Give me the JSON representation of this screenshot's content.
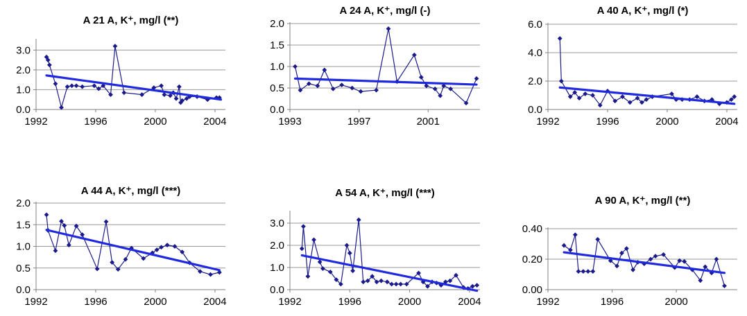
{
  "chart_data": [
    {
      "type": "scatter",
      "title": "A 21 A, K⁺, mg/l  (**)",
      "xlabel": "",
      "ylabel": "",
      "xlim": [
        1992,
        2004.7
      ],
      "ylim": [
        0,
        3.5
      ],
      "xticks": [
        1992,
        1996,
        2000,
        2004
      ],
      "xtick_labels": [
        "1992",
        "1996",
        "2000",
        "2004"
      ],
      "yticks": [
        0,
        1,
        2,
        3
      ],
      "ytick_labels": [
        "0.0",
        "1.0",
        "2.0",
        "3.0"
      ],
      "gridlines": "horizontal",
      "series": [
        {
          "x": [
            1992.7,
            1992.8,
            1992.9,
            1993.3,
            1993.7,
            1994.1,
            1994.4,
            1994.7,
            1995.1,
            1995.9,
            1996.2,
            1996.5,
            1997.0,
            1997.3,
            1997.9,
            1999.1,
            1999.9,
            2000.4,
            2000.6,
            2001.0,
            2001.2,
            2001.4,
            2001.6,
            2001.7,
            2001.8,
            2002.1,
            2002.3,
            2002.8,
            2003.5,
            2004.1,
            2004.3
          ],
          "y": [
            2.65,
            2.5,
            2.25,
            1.3,
            0.1,
            1.15,
            1.2,
            1.2,
            1.15,
            1.2,
            1.05,
            1.2,
            0.75,
            3.2,
            0.85,
            0.75,
            1.1,
            1.2,
            0.75,
            0.7,
            0.85,
            0.55,
            1.15,
            0.35,
            0.45,
            0.55,
            0.65,
            0.65,
            0.5,
            0.6,
            0.6
          ]
        }
      ],
      "trend": {
        "x": [
          1992.7,
          2004.4
        ],
        "y": [
          1.72,
          0.5
        ]
      },
      "colors": {
        "series": "#1a1a8c",
        "trend": "#1f2ae0",
        "grid": "#999999"
      }
    },
    {
      "type": "scatter",
      "title": "A 24 A, K⁺, mg/l  (-)",
      "xlabel": "",
      "ylabel": "",
      "xlim": [
        1993,
        2004
      ],
      "ylim": [
        0,
        2
      ],
      "xticks": [
        1993,
        1997,
        2001
      ],
      "xtick_labels": [
        "1993",
        "1997",
        "2001"
      ],
      "yticks": [
        0,
        0.5,
        1,
        1.5,
        2
      ],
      "ytick_labels": [
        "0.0",
        "0.5",
        "1.0",
        "1.5",
        "2.0"
      ],
      "gridlines": "horizontal",
      "series": [
        {
          "x": [
            1993.3,
            1993.6,
            1994.1,
            1994.6,
            1995.0,
            1995.5,
            1996.0,
            1996.6,
            1997.1,
            1998.0,
            1998.7,
            1999.2,
            2000.2,
            2000.6,
            2000.9,
            2001.4,
            2001.7,
            2001.9,
            2002.3,
            2003.2,
            2003.8
          ],
          "y": [
            1.0,
            0.45,
            0.6,
            0.55,
            0.92,
            0.48,
            0.57,
            0.5,
            0.42,
            0.45,
            1.88,
            0.65,
            1.27,
            0.75,
            0.55,
            0.48,
            0.32,
            0.55,
            0.48,
            0.15,
            0.72
          ]
        }
      ],
      "trend": {
        "x": [
          1993.3,
          2003.8
        ],
        "y": [
          0.72,
          0.58
        ]
      },
      "colors": {
        "series": "#1a1a8c",
        "trend": "#1f2ae0",
        "grid": "#999999"
      }
    },
    {
      "type": "scatter",
      "title": "A 40 A, K⁺, mg/l  (*)",
      "xlabel": "",
      "ylabel": "",
      "xlim": [
        1992,
        2004.7
      ],
      "ylim": [
        0,
        6
      ],
      "xticks": [
        1992,
        1996,
        2000,
        2004
      ],
      "xtick_labels": [
        "1992",
        "1996",
        "2000",
        "2004"
      ],
      "yticks": [
        0,
        2,
        4,
        6
      ],
      "ytick_labels": [
        "0.0",
        "2.0",
        "4.0",
        "6.0"
      ],
      "gridlines": "horizontal",
      "series": [
        {
          "x": [
            1992.8,
            1992.9,
            1993.5,
            1993.8,
            1994.1,
            1994.5,
            1995.0,
            1995.5,
            1996.0,
            1996.5,
            1997.0,
            1997.5,
            1998.0,
            1998.3,
            1998.6,
            1999.0,
            2000.3,
            2000.6,
            2001.0,
            2001.5,
            2002.0,
            2002.5,
            2003.0,
            2003.5,
            2004.0,
            2004.3,
            2004.5
          ],
          "y": [
            5.0,
            2.0,
            0.9,
            1.2,
            0.8,
            1.1,
            1.0,
            0.3,
            1.3,
            0.6,
            0.9,
            0.5,
            0.8,
            0.5,
            0.7,
            0.9,
            1.1,
            0.7,
            0.7,
            0.7,
            0.9,
            0.6,
            0.7,
            0.4,
            0.5,
            0.7,
            0.9
          ]
        }
      ],
      "trend": {
        "x": [
          1992.8,
          2004.5
        ],
        "y": [
          1.55,
          0.4
        ]
      },
      "colors": {
        "series": "#1a1a8c",
        "trend": "#1f2ae0",
        "grid": "#999999"
      }
    },
    {
      "type": "scatter",
      "title": "A 44 A, K⁺, mg/l  (***)",
      "xlabel": "",
      "ylabel": "",
      "xlim": [
        1992,
        2004.7
      ],
      "ylim": [
        0,
        2
      ],
      "xticks": [
        1992,
        1996,
        2000,
        2004
      ],
      "xtick_labels": [
        "1992",
        "1996",
        "2000",
        "2004"
      ],
      "yticks": [
        0,
        0.5,
        1,
        1.5,
        2
      ],
      "ytick_labels": [
        "0.0",
        "0.5",
        "1.0",
        "1.5",
        "2.0"
      ],
      "gridlines": "horizontal",
      "series": [
        {
          "x": [
            1992.7,
            1992.8,
            1993.3,
            1993.7,
            1993.9,
            1994.2,
            1994.7,
            1995.1,
            1996.1,
            1996.7,
            1997.1,
            1997.5,
            1998.0,
            1998.4,
            1999.2,
            1999.8,
            2000.1,
            2000.4,
            2000.8,
            2001.3,
            2001.8,
            2002.3,
            2003.0,
            2003.7,
            2004.3
          ],
          "y": [
            1.73,
            1.37,
            0.9,
            1.58,
            1.48,
            1.03,
            1.47,
            1.27,
            0.48,
            1.57,
            0.63,
            0.47,
            0.7,
            0.96,
            0.72,
            0.85,
            0.92,
            0.98,
            1.03,
            1.0,
            0.87,
            0.62,
            0.42,
            0.35,
            0.4
          ]
        }
      ],
      "trend": {
        "x": [
          1992.7,
          2004.3
        ],
        "y": [
          1.38,
          0.45
        ]
      },
      "colors": {
        "series": "#1a1a8c",
        "trend": "#1f2ae0",
        "grid": "#999999"
      }
    },
    {
      "type": "scatter",
      "title": "A 54 A, K⁺, mg/l  (***)",
      "xlabel": "",
      "ylabel": "",
      "xlim": [
        1992,
        2004.7
      ],
      "ylim": [
        0,
        3.5
      ],
      "xticks": [
        1992,
        1996,
        2000,
        2004
      ],
      "xtick_labels": [
        "1992",
        "1996",
        "2000",
        "2004"
      ],
      "yticks": [
        0,
        1,
        2,
        3
      ],
      "ytick_labels": [
        "0.0",
        "1.0",
        "2.0",
        "3.0"
      ],
      "gridlines": "horizontal",
      "series": [
        {
          "x": [
            1992.8,
            1992.9,
            1993.2,
            1993.6,
            1994.0,
            1994.2,
            1994.7,
            1995.1,
            1995.4,
            1995.8,
            1996.0,
            1996.2,
            1996.6,
            1996.9,
            1997.2,
            1997.5,
            1997.8,
            1998.1,
            1998.5,
            1998.8,
            1999.1,
            1999.4,
            1999.8,
            2000.6,
            2000.9,
            2001.2,
            2001.5,
            2001.8,
            2002.1,
            2002.4,
            2002.7,
            2003.1,
            2003.6,
            2003.9,
            2004.2,
            2004.5
          ],
          "y": [
            1.85,
            2.85,
            0.6,
            2.25,
            1.25,
            0.95,
            0.8,
            0.45,
            0.25,
            2.0,
            1.65,
            0.85,
            3.15,
            0.35,
            0.4,
            0.6,
            0.35,
            0.4,
            0.35,
            0.25,
            0.25,
            0.25,
            0.25,
            0.75,
            0.35,
            0.15,
            0.35,
            0.3,
            0.2,
            0.35,
            0.4,
            0.65,
            0.1,
            0.05,
            0.15,
            0.2
          ]
        }
      ],
      "trend": {
        "x": [
          1992.8,
          2004.5
        ],
        "y": [
          1.55,
          -0.05
        ]
      },
      "colors": {
        "series": "#1a1a8c",
        "trend": "#1f2ae0",
        "grid": "#999999"
      }
    },
    {
      "type": "scatter",
      "title": "A 90 A, K⁺, mg/l  (**)",
      "xlabel": "",
      "ylabel": "",
      "xlim": [
        1992,
        2003.8
      ],
      "ylim": [
        0,
        0.4
      ],
      "xticks": [
        1992,
        1996,
        2000
      ],
      "xtick_labels": [
        "1992",
        "1996",
        "2000"
      ],
      "yticks": [
        0,
        0.2,
        0.4
      ],
      "ytick_labels": [
        "0.00",
        "0.20",
        "0.40"
      ],
      "gridlines": "horizontal",
      "series": [
        {
          "x": [
            1993.0,
            1993.4,
            1993.7,
            1993.9,
            1994.2,
            1994.5,
            1994.8,
            1995.1,
            1995.9,
            1996.3,
            1996.6,
            1996.9,
            1997.3,
            1997.6,
            1998.0,
            1998.4,
            1998.7,
            1999.2,
            1999.9,
            2000.2,
            2000.5,
            2001.0,
            2001.5,
            2001.8,
            2002.2,
            2002.5,
            2003.0
          ],
          "y": [
            0.29,
            0.26,
            0.36,
            0.12,
            0.12,
            0.12,
            0.12,
            0.33,
            0.19,
            0.155,
            0.24,
            0.27,
            0.13,
            0.18,
            0.17,
            0.2,
            0.22,
            0.23,
            0.145,
            0.19,
            0.185,
            0.13,
            0.06,
            0.15,
            0.11,
            0.2,
            0.025
          ]
        }
      ],
      "trend": {
        "x": [
          1993.0,
          2003.0
        ],
        "y": [
          0.245,
          0.11
        ]
      },
      "colors": {
        "series": "#1a1a8c",
        "trend": "#1f2ae0",
        "grid": "#999999"
      }
    }
  ]
}
